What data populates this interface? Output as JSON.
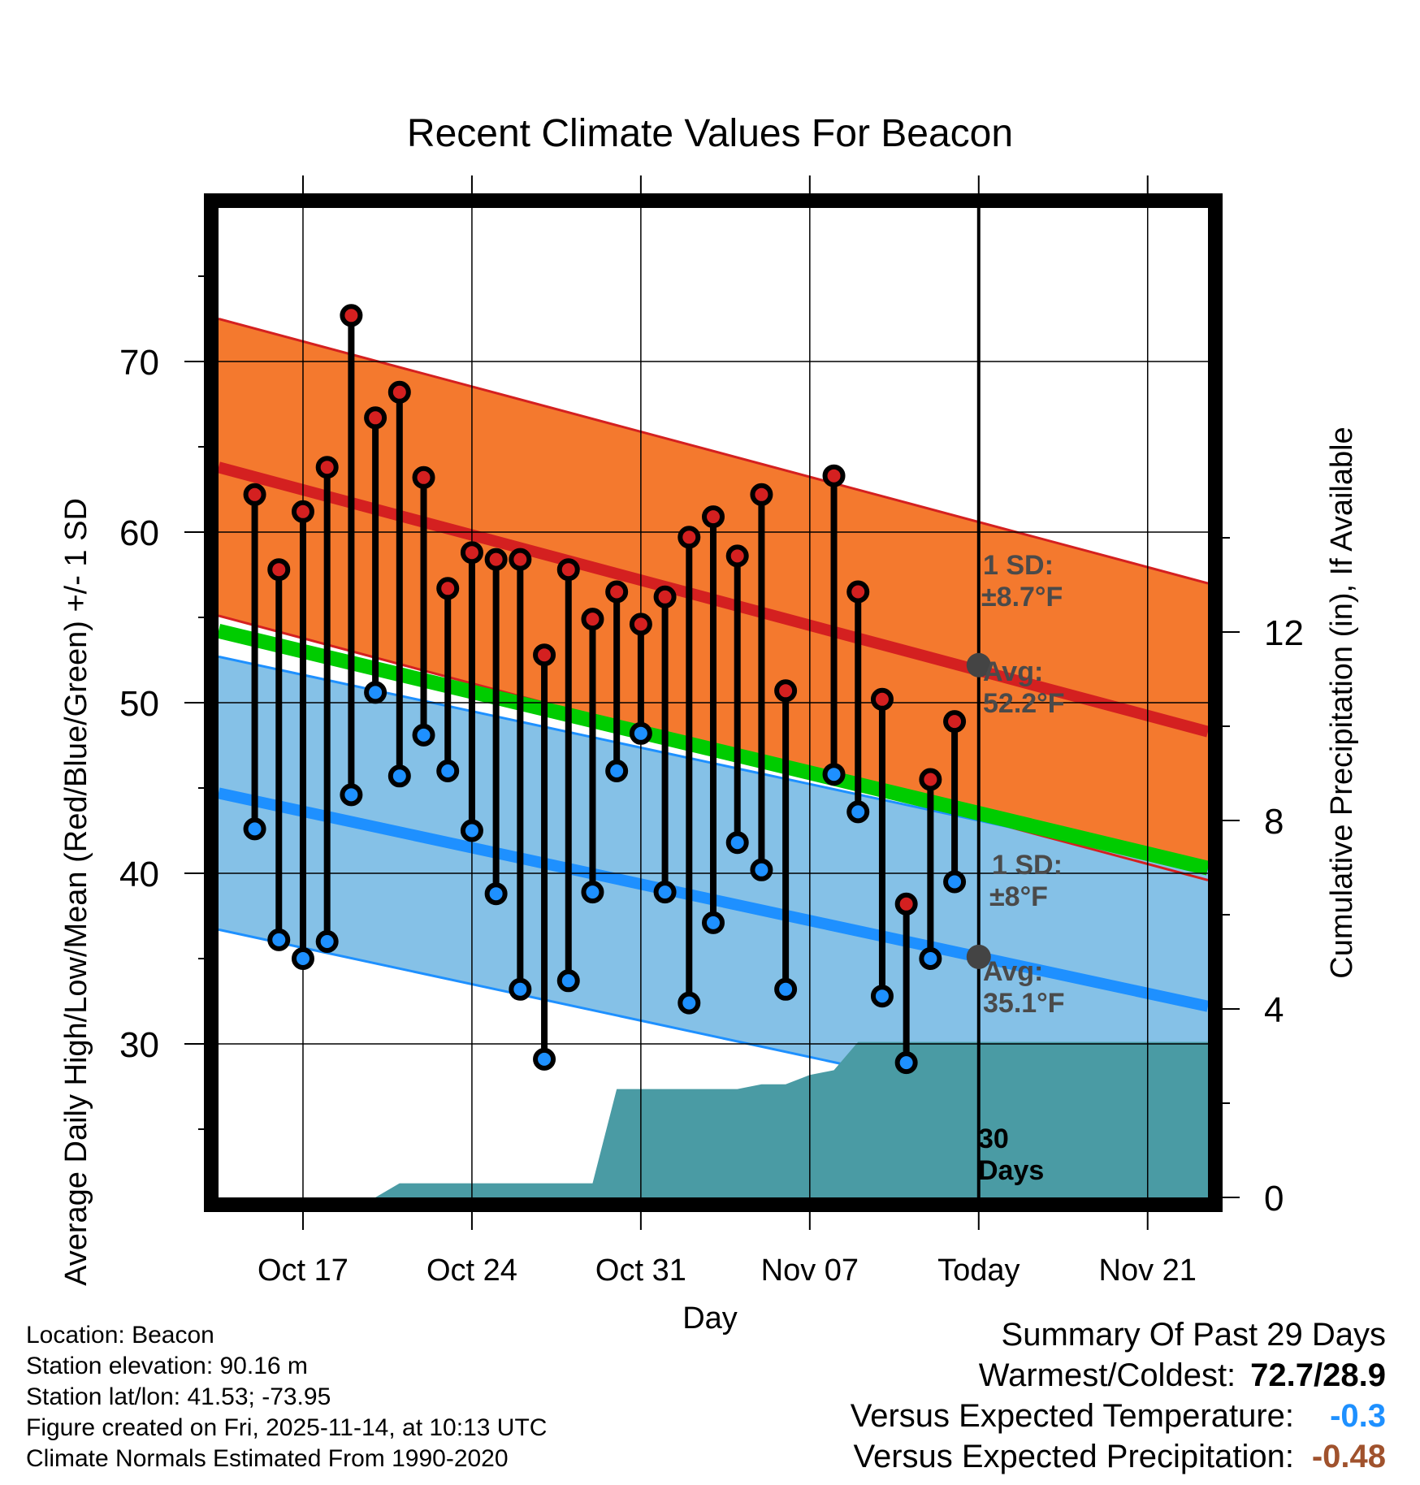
{
  "chart_data": {
    "type": "line",
    "title": "Recent Climate Values For Beacon",
    "xlabel": "Day",
    "ylabel": "Average Daily High/Low/Mean (Red/Blue/Green) +/- 1 SD",
    "y2label": "Cumulative Precipitation (in), If Available",
    "xlim": [
      -0.5,
      40.5
    ],
    "ylim": [
      21,
      79
    ],
    "y2lim": [
      0,
      21
    ],
    "yticks": [
      30,
      40,
      50,
      60,
      70
    ],
    "y2ticks": [
      0,
      4,
      8,
      12
    ],
    "xticks": [
      {
        "day": 3,
        "label": "Oct 17"
      },
      {
        "day": 10,
        "label": "Oct 24"
      },
      {
        "day": 17,
        "label": "Oct 31"
      },
      {
        "day": 24,
        "label": "Nov 07"
      },
      {
        "day": 31,
        "label": "Today"
      },
      {
        "day": 38,
        "label": "Nov 21"
      }
    ],
    "normal_high": {
      "start": 63.8,
      "end": 48.3,
      "sd_label": "1 SD:",
      "sd_value": "±8.7°F",
      "avg_label": "Avg:",
      "avg_value": "52.2°F",
      "avg_today": 52.2,
      "color": "#d42020",
      "band_color": "#f4792e"
    },
    "normal_low": {
      "start": 44.7,
      "end": 32.2,
      "sd_label": "1 SD:",
      "sd_value": "±8°F",
      "avg_label": "Avg:",
      "avg_value": "35.1°F",
      "avg_today": 35.1,
      "color": "#1e90ff",
      "band_color": "#85c1e7"
    },
    "normal_mean": {
      "start": 54.2,
      "end": 40.3,
      "color": "#00cc00"
    },
    "days": [
      1,
      2,
      3,
      4,
      5,
      6,
      7,
      8,
      9,
      10,
      11,
      12,
      13,
      14,
      15,
      16,
      17,
      18,
      19,
      20,
      21,
      22,
      23,
      25,
      26,
      27,
      28,
      29,
      30
    ],
    "highs": [
      62.2,
      57.8,
      61.2,
      63.8,
      72.7,
      66.7,
      68.2,
      63.2,
      56.7,
      58.8,
      58.4,
      58.4,
      52.8,
      57.8,
      54.9,
      56.5,
      54.6,
      56.2,
      59.7,
      60.9,
      58.6,
      62.2,
      50.7,
      63.3,
      56.5,
      50.2,
      38.2,
      45.5,
      48.9
    ],
    "lows": [
      42.6,
      36.1,
      35.0,
      36.0,
      44.6,
      50.6,
      45.7,
      48.1,
      46.0,
      42.5,
      38.8,
      33.2,
      29.1,
      33.7,
      38.9,
      46.0,
      48.2,
      38.9,
      32.4,
      37.1,
      41.8,
      40.2,
      33.2,
      45.8,
      43.6,
      32.8,
      28.9,
      35.0,
      39.5
    ],
    "precip_cumulative": {
      "days": [
        -0.5,
        6,
        7,
        8,
        9,
        10,
        11,
        12,
        13,
        14,
        15,
        16,
        17,
        18,
        19,
        20,
        21,
        22,
        23,
        24,
        25,
        26,
        27,
        28,
        29,
        30,
        31,
        40.5
      ],
      "values": [
        0,
        0,
        0.3,
        0.3,
        0.3,
        0.3,
        0.3,
        0.3,
        0.3,
        0.3,
        0.3,
        2.3,
        2.3,
        2.3,
        2.3,
        2.3,
        2.3,
        2.4,
        2.4,
        2.6,
        2.7,
        3.3,
        3.3,
        3.3,
        3.3,
        3.3,
        3.3,
        3.3
      ],
      "color": "#4a9ba4"
    },
    "window_label_value": "30",
    "window_label_unit": "Days"
  },
  "footer": {
    "location": "Location: Beacon",
    "elevation": "Station elevation: 90.16 m",
    "latlon": "Station lat/lon: 41.53; -73.95",
    "created": "Figure created on Fri, 2025-11-14, at 10:13 UTC",
    "normals": "Climate Normals Estimated From 1990-2020"
  },
  "summary": {
    "title": "Summary Of Past 29 Days",
    "warm_cold_label": "Warmest/Coldest:",
    "warm_cold_value": "72.7/28.9",
    "temp_label": "Versus Expected Temperature:",
    "temp_value": "-0.3",
    "temp_color": "#1e90ff",
    "precip_label": "Versus Expected Precipitation:",
    "precip_value": "-0.48",
    "precip_color": "#a0522d"
  }
}
